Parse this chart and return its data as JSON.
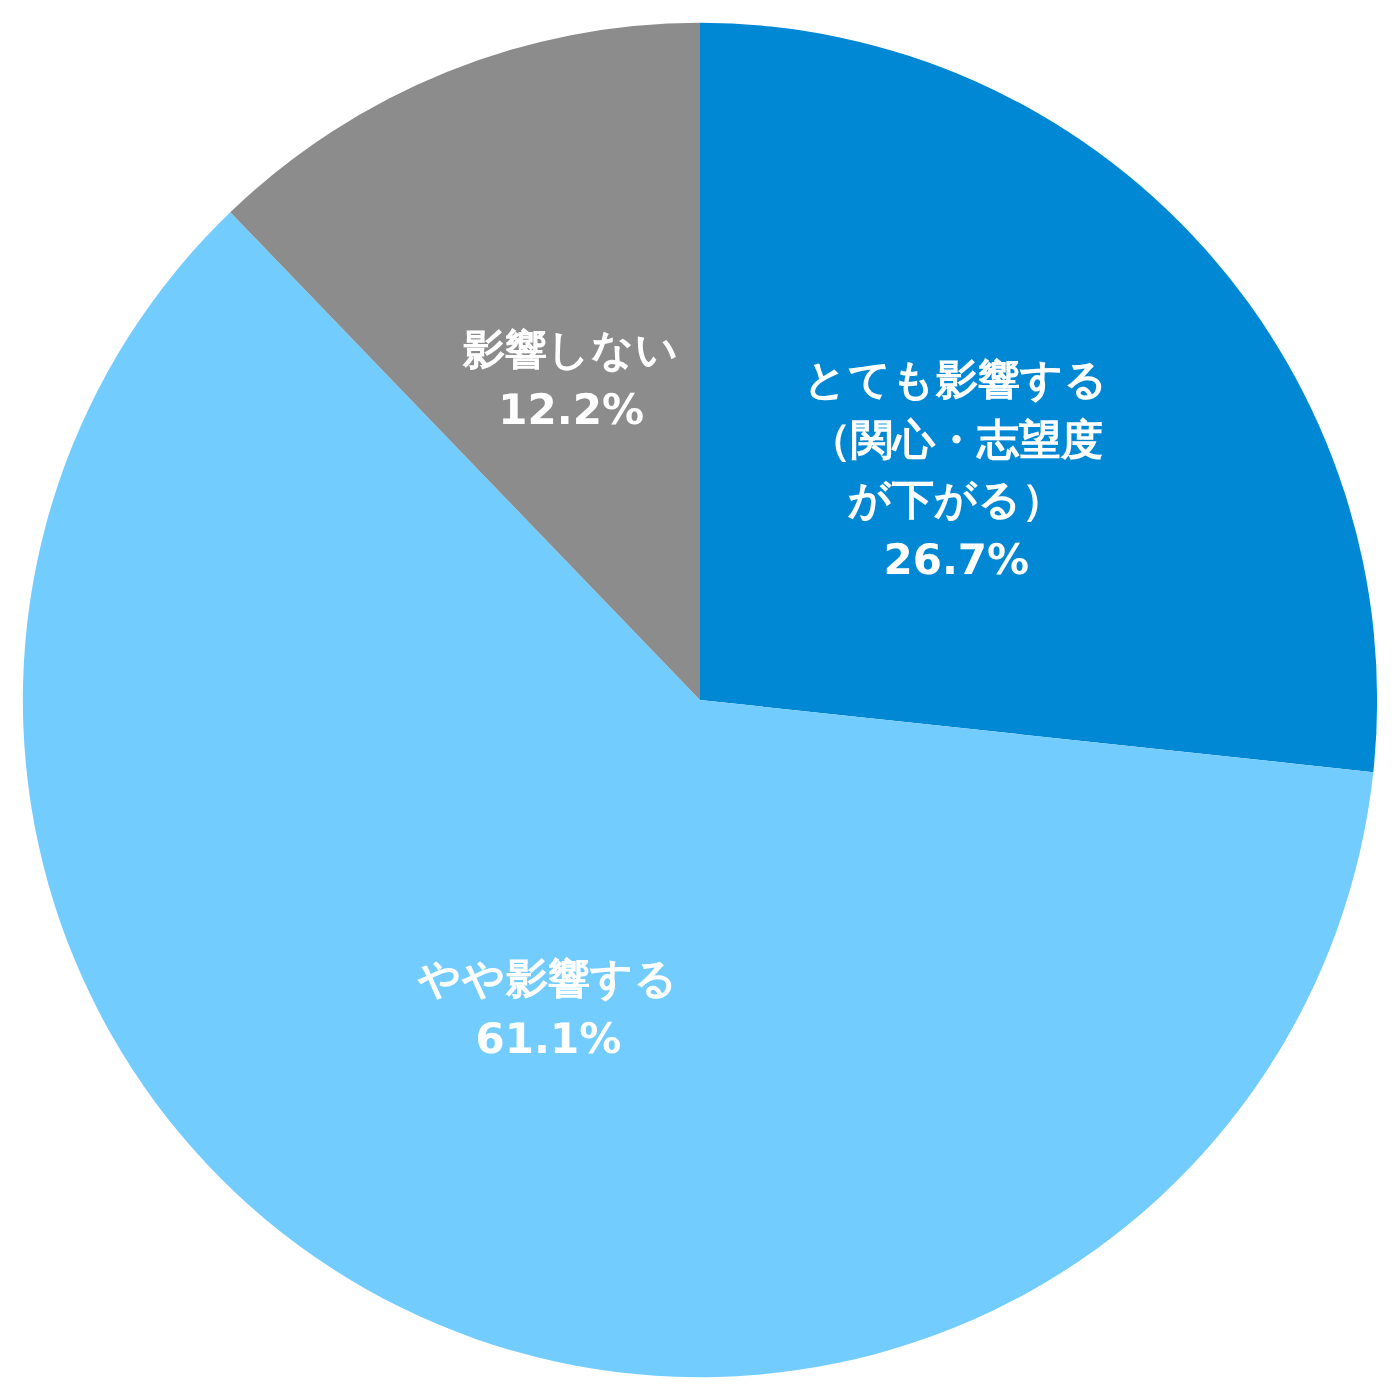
{
  "chart_data": {
    "type": "pie",
    "categories": [
      "とても影響する（関心・志望度が下がる）",
      "やや影響する",
      "影響しない"
    ],
    "values": [
      26.7,
      61.1,
      12.2
    ],
    "colors": [
      "#0088d4",
      "#73ccfe",
      "#8c8c8c"
    ],
    "value_labels": [
      "26.7%",
      "61.1%",
      "12.2%"
    ],
    "legend": false
  }
}
